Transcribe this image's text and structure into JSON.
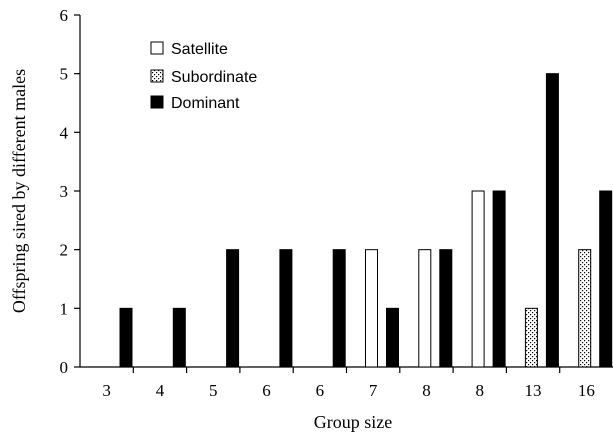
{
  "chart_data": {
    "type": "bar",
    "title": "",
    "xlabel": "Group size",
    "ylabel": "Offspring sired by different males",
    "ylim": [
      0,
      6
    ],
    "yticks": [
      "0",
      "1",
      "2",
      "3",
      "4",
      "5",
      "6"
    ],
    "categories": [
      "3",
      "4",
      "5",
      "6",
      "6",
      "7",
      "8",
      "8",
      "13",
      "16"
    ],
    "series": [
      {
        "name": "Satellite",
        "fill": "white",
        "values": [
          0,
          0,
          0,
          0,
          0,
          2,
          2,
          3,
          0,
          0
        ]
      },
      {
        "name": "Subordinate",
        "fill": "dotted",
        "values": [
          0,
          0,
          0,
          0,
          0,
          0,
          0,
          0,
          1,
          2
        ]
      },
      {
        "name": "Dominant",
        "fill": "black",
        "values": [
          1,
          1,
          2,
          2,
          2,
          1,
          2,
          3,
          5,
          3
        ]
      }
    ],
    "legend_position": "top-left",
    "grid": false
  }
}
